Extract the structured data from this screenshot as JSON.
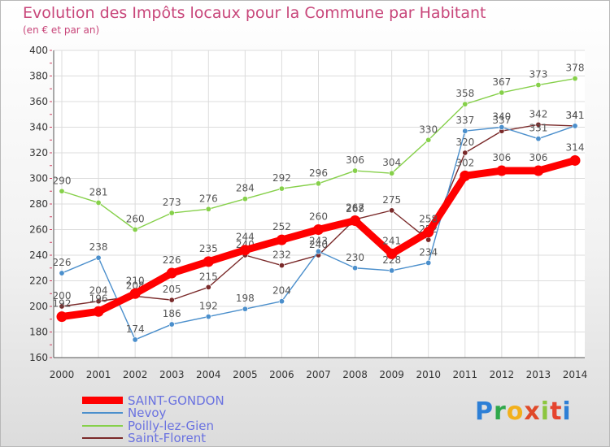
{
  "header": {
    "title": "Evolution des Impôts locaux pour la Commune par Habitant",
    "subtitle": "(en € et par an)"
  },
  "logo": {
    "text": "Proxiti"
  },
  "chart_data": {
    "type": "line",
    "title": "Evolution des Impôts locaux pour la Commune par Habitant",
    "subtitle": "(en € et par an)",
    "xlabel": "",
    "ylabel": "",
    "x": [
      "2000",
      "2001",
      "2002",
      "2003",
      "2004",
      "2005",
      "2006",
      "2007",
      "2008",
      "2009",
      "2010",
      "2011",
      "2012",
      "2013",
      "2014"
    ],
    "ylim": [
      160,
      400
    ],
    "yticks": [
      160,
      180,
      200,
      220,
      240,
      260,
      280,
      300,
      320,
      340,
      360,
      380,
      400
    ],
    "grid": true,
    "legend_position": "bottom-left",
    "series": [
      {
        "name": "Saint-Florent",
        "color": "#7a2a2a",
        "values": [
          200,
          204,
          208,
          205,
          215,
          240,
          232,
          240,
          268,
          275,
          252,
          320,
          337,
          342,
          341
        ]
      },
      {
        "name": "Nevoy",
        "color": "#4b8fcc",
        "values": [
          226,
          238,
          174,
          186,
          192,
          198,
          204,
          243,
          230,
          228,
          234,
          337,
          340,
          331,
          341
        ]
      },
      {
        "name": "Poilly-lez-Gien",
        "color": "#86d04a",
        "values": [
          290,
          281,
          260,
          273,
          276,
          284,
          292,
          296,
          306,
          304,
          330,
          358,
          367,
          373,
          378
        ]
      },
      {
        "name": "SAINT-GONDON",
        "color": "#ff0000",
        "values": [
          192,
          196,
          210,
          226,
          235,
          244,
          252,
          260,
          267,
          241,
          258,
          302,
          306,
          306,
          314
        ]
      }
    ]
  }
}
